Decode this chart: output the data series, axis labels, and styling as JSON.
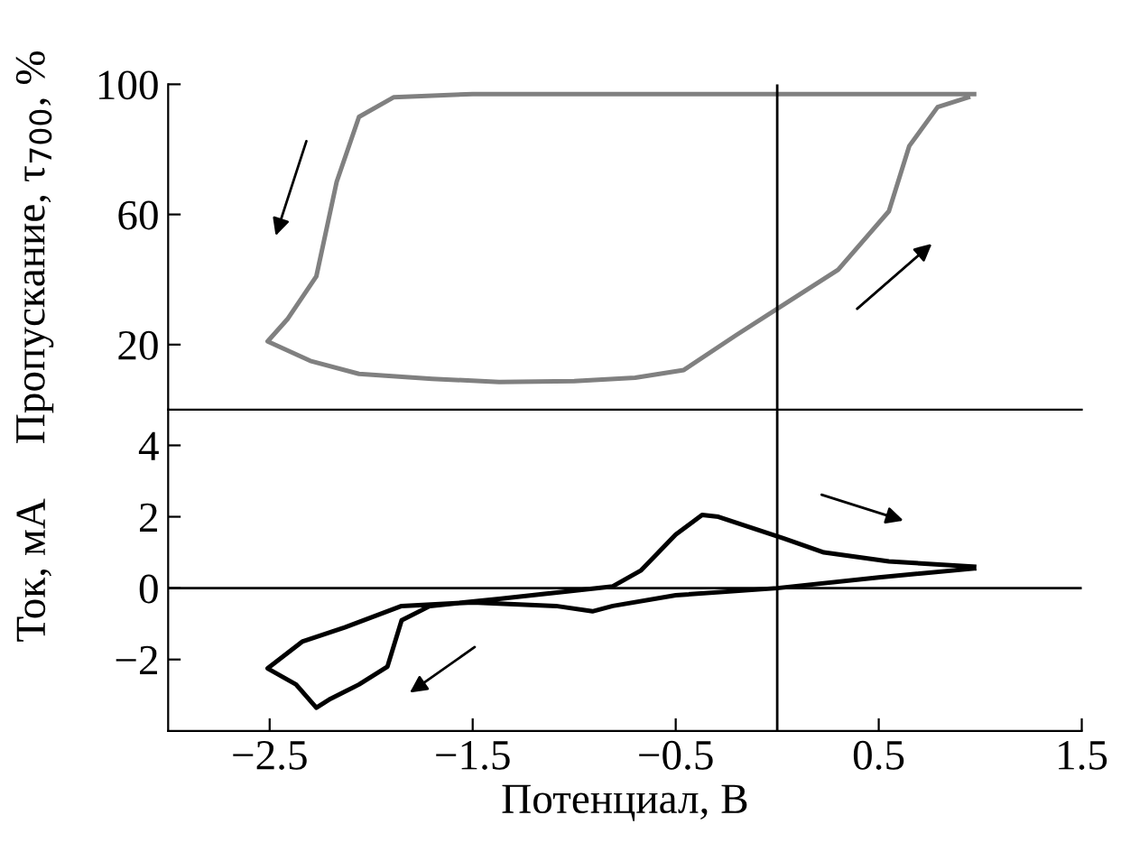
{
  "chart_data": [
    {
      "type": "line",
      "ylabel": "Пропускание, τ$_{700}$, %",
      "xlim": [
        -3,
        1.5
      ],
      "ylim": [
        0,
        100
      ],
      "xticks": [
        {
          "value": -2.5,
          "label": null
        },
        {
          "value": -1.5,
          "label": null
        },
        {
          "value": -0.5,
          "label": null
        },
        {
          "value": 0.5,
          "label": null
        },
        {
          "value": 1.5,
          "label": null
        }
      ],
      "yticks": [
        20,
        60,
        100
      ],
      "tick_labels": "y",
      "ref_lines": [
        {
          "axis": "x",
          "value": 0,
          "color": "#000000"
        }
      ],
      "series": [
        {
          "color": "#808080",
          "x": [
            0.97,
            0.5,
            0,
            -0.5,
            -1.0,
            -1.5,
            -1.89,
            -2.06,
            -2.17,
            -2.27,
            -2.41,
            -2.51,
            -2.3,
            -2.06,
            -1.7,
            -1.37,
            -1.0,
            -0.7,
            -0.46,
            -0.2,
            0,
            0.3,
            0.55,
            0.65,
            0.79,
            0.94
          ],
          "values": [
            97,
            97,
            97,
            97,
            97,
            97,
            96,
            90,
            70,
            41,
            28,
            21,
            15,
            11,
            9.5,
            8.5,
            8.8,
            9.8,
            12.2,
            23,
            31,
            43,
            61,
            81,
            93,
            96
          ]
        }
      ]
    },
    {
      "type": "line",
      "xlabel": "Потенциал, В",
      "ylabel": "Ток, мА",
      "xlim": [
        -3,
        1.5
      ],
      "ylim": [
        -4,
        5
      ],
      "xticks": [
        {
          "value": -2.5,
          "label": "−2.5"
        },
        {
          "value": -1.5,
          "label": "−1.5"
        },
        {
          "value": -0.5,
          "label": "−0.5"
        },
        0.5,
        1.5
      ],
      "yticks": [
        {
          "value": -2,
          "label": "−2"
        },
        0,
        2,
        4
      ],
      "ref_lines": [
        {
          "axis": "x",
          "value": 0,
          "color": "#000000"
        },
        {
          "axis": "y",
          "value": 0,
          "color": "#000000"
        }
      ],
      "series": [
        {
          "color": "#000000",
          "x": [
            0.97,
            0.5,
            0,
            -0.5,
            -0.81,
            -0.91,
            -1.09,
            -1.5,
            -1.85,
            -2.13,
            -2.34,
            -2.51,
            -2.37,
            -2.27,
            -2.2,
            -2.06,
            -1.92,
            -1.85,
            -1.71,
            -1.37,
            -0.81,
            -0.67,
            -0.5,
            -0.37,
            -0.29,
            0.03,
            0.23,
            0.55,
            0.97
          ],
          "values": [
            0.55,
            0.3,
            0,
            -0.2,
            -0.5,
            -0.65,
            -0.5,
            -0.4,
            -0.5,
            -1.1,
            -1.5,
            -2.25,
            -2.7,
            -3.35,
            -3.1,
            -2.7,
            -2.2,
            -0.9,
            -0.5,
            -0.3,
            0.05,
            0.5,
            1.5,
            2.05,
            2.0,
            1.4,
            1.0,
            0.75,
            0.6
          ]
        }
      ]
    }
  ]
}
